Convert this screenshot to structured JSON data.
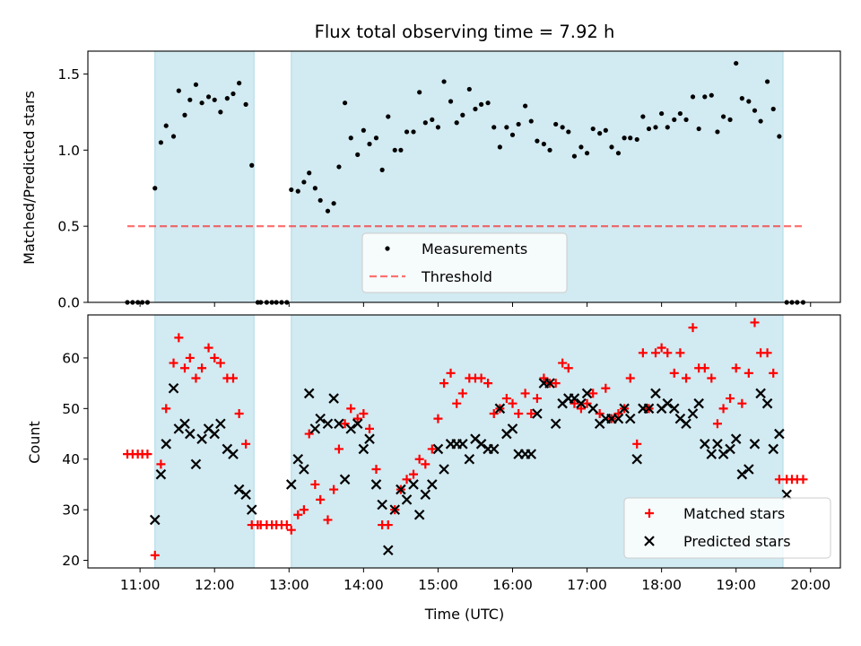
{
  "title": "Flux total observing time = 7.92 h",
  "colors": {
    "band": "#add8e6",
    "measurement": "#000000",
    "threshold": "#ff0000",
    "matched": "#ff0000",
    "predicted": "#000000"
  },
  "chart_data": [
    {
      "type": "scatter",
      "ylabel": "Matched/Predicted stars",
      "ylim": [
        0,
        1.65
      ],
      "yticks": [
        0.0,
        0.5,
        1.0,
        1.5
      ],
      "ytick_labels": [
        "0.0",
        "0.5",
        "1.0",
        "1.5"
      ],
      "xlim": [
        10.3,
        20.4
      ],
      "observing_bands": [
        [
          11.2,
          12.53
        ],
        [
          13.03,
          19.63
        ]
      ],
      "legend": {
        "placement": "lower center",
        "entries": [
          "Measurements",
          "Threshold"
        ]
      },
      "threshold": {
        "name": "Threshold",
        "y": 0.5,
        "x_range": [
          10.83,
          19.9
        ]
      },
      "series": [
        {
          "name": "Measurements",
          "x": [
            10.83,
            10.9,
            10.97,
            11.03,
            11.1,
            11.2,
            11.28,
            11.35,
            11.45,
            11.52,
            11.6,
            11.67,
            11.75,
            11.83,
            11.92,
            12.0,
            12.08,
            12.17,
            12.25,
            12.33,
            12.42,
            12.5,
            12.58,
            12.62,
            12.7,
            12.77,
            12.83,
            12.9,
            12.97,
            13.03,
            13.12,
            13.2,
            13.27,
            13.35,
            13.42,
            13.52,
            13.6,
            13.67,
            13.75,
            13.83,
            13.92,
            14.0,
            14.08,
            14.17,
            14.25,
            14.33,
            14.42,
            14.5,
            14.58,
            14.67,
            14.75,
            14.83,
            14.92,
            15.0,
            15.08,
            15.17,
            15.25,
            15.33,
            15.42,
            15.5,
            15.58,
            15.67,
            15.75,
            15.83,
            15.92,
            16.0,
            16.08,
            16.17,
            16.25,
            16.33,
            16.42,
            16.5,
            16.58,
            16.67,
            16.75,
            16.83,
            16.92,
            17.0,
            17.08,
            17.17,
            17.25,
            17.33,
            17.42,
            17.5,
            17.58,
            17.67,
            17.75,
            17.83,
            17.92,
            18.0,
            18.08,
            18.17,
            18.25,
            18.33,
            18.42,
            18.5,
            18.58,
            18.67,
            18.75,
            18.83,
            18.92,
            19.0,
            19.08,
            19.17,
            19.25,
            19.33,
            19.42,
            19.5,
            19.58,
            19.68,
            19.75,
            19.82,
            19.9
          ],
          "y": [
            0,
            0,
            0,
            0,
            0,
            0.75,
            1.05,
            1.16,
            1.09,
            1.39,
            1.23,
            1.33,
            1.43,
            1.31,
            1.35,
            1.33,
            1.25,
            1.34,
            1.37,
            1.44,
            1.3,
            0.9,
            0,
            0,
            0,
            0,
            0,
            0,
            0,
            0.74,
            0.73,
            0.79,
            0.85,
            0.75,
            0.67,
            0.6,
            0.65,
            0.89,
            1.31,
            1.08,
            0.97,
            1.13,
            1.04,
            1.08,
            0.87,
            1.22,
            1.0,
            1.0,
            1.12,
            1.12,
            1.38,
            1.18,
            1.2,
            1.15,
            1.45,
            1.32,
            1.18,
            1.23,
            1.4,
            1.27,
            1.3,
            1.31,
            1.15,
            1.02,
            1.15,
            1.1,
            1.17,
            1.29,
            1.19,
            1.06,
            1.04,
            1.0,
            1.17,
            1.15,
            1.12,
            0.96,
            1.02,
            0.98,
            1.14,
            1.11,
            1.13,
            1.02,
            0.98,
            1.08,
            1.08,
            1.07,
            1.22,
            1.14,
            1.15,
            1.24,
            1.15,
            1.2,
            1.24,
            1.2,
            1.35,
            1.14,
            1.35,
            1.36,
            1.12,
            1.22,
            1.2,
            1.57,
            1.34,
            1.32,
            1.26,
            1.19,
            1.45,
            1.27,
            1.09,
            0,
            0,
            0,
            0
          ]
        }
      ]
    },
    {
      "type": "scatter",
      "xlabel": "Time (UTC)",
      "ylabel": "Count",
      "ylim": [
        18.5,
        68.5
      ],
      "yticks": [
        20,
        30,
        40,
        50,
        60
      ],
      "ytick_labels": [
        "20",
        "30",
        "40",
        "50",
        "60"
      ],
      "xlim": [
        10.3,
        20.4
      ],
      "xticks": [
        11,
        12,
        13,
        14,
        15,
        16,
        17,
        18,
        19,
        20
      ],
      "xtick_labels": [
        "11:00",
        "12:00",
        "13:00",
        "14:00",
        "15:00",
        "16:00",
        "17:00",
        "18:00",
        "19:00",
        "20:00"
      ],
      "observing_bands": [
        [
          11.2,
          12.53
        ],
        [
          13.03,
          19.63
        ]
      ],
      "legend": {
        "placement": "lower right",
        "entries": [
          "Matched stars",
          "Predicted stars"
        ]
      },
      "series": [
        {
          "name": "Matched stars",
          "marker": "plus",
          "x": [
            10.83,
            10.9,
            10.97,
            11.03,
            11.1,
            11.2,
            11.28,
            11.35,
            11.45,
            11.52,
            11.6,
            11.67,
            11.75,
            11.83,
            11.92,
            12.0,
            12.08,
            12.17,
            12.25,
            12.33,
            12.42,
            12.5,
            12.58,
            12.62,
            12.7,
            12.77,
            12.83,
            12.9,
            12.97,
            13.03,
            13.12,
            13.2,
            13.27,
            13.35,
            13.42,
            13.52,
            13.6,
            13.67,
            13.75,
            13.83,
            13.92,
            14.0,
            14.08,
            14.17,
            14.25,
            14.33,
            14.42,
            14.5,
            14.58,
            14.67,
            14.75,
            14.83,
            14.92,
            15.0,
            15.08,
            15.17,
            15.25,
            15.33,
            15.42,
            15.5,
            15.58,
            15.67,
            15.75,
            15.83,
            15.92,
            16.0,
            16.08,
            16.17,
            16.25,
            16.33,
            16.42,
            16.5,
            16.58,
            16.67,
            16.75,
            16.83,
            16.92,
            17.0,
            17.08,
            17.17,
            17.25,
            17.33,
            17.42,
            17.5,
            17.58,
            17.67,
            17.75,
            17.83,
            17.92,
            18.0,
            18.08,
            18.17,
            18.25,
            18.33,
            18.42,
            18.5,
            18.58,
            18.67,
            18.75,
            18.83,
            18.92,
            19.0,
            19.08,
            19.17,
            19.25,
            19.33,
            19.42,
            19.5,
            19.58,
            19.68,
            19.75,
            19.82,
            19.9
          ],
          "y": [
            41,
            41,
            41,
            41,
            41,
            21,
            39,
            50,
            59,
            64,
            58,
            60,
            56,
            58,
            62,
            60,
            59,
            56,
            56,
            49,
            43,
            27,
            27,
            27,
            27,
            27,
            27,
            27,
            27,
            26,
            29,
            30,
            45,
            35,
            32,
            28,
            34,
            42,
            47,
            50,
            48,
            49,
            46,
            38,
            27,
            27,
            30,
            34,
            36,
            37,
            40,
            39,
            42,
            48,
            55,
            57,
            51,
            53,
            56,
            56,
            56,
            55,
            49,
            50,
            52,
            51,
            49,
            53,
            49,
            52,
            56,
            55,
            55,
            59,
            58,
            51,
            50,
            51,
            53,
            49,
            54,
            48,
            49,
            50,
            56,
            43,
            61,
            50,
            61,
            62,
            61,
            57,
            61,
            56,
            66,
            58,
            58,
            56,
            47,
            50,
            52,
            58,
            51,
            57,
            67,
            61,
            61,
            57,
            36,
            36,
            36,
            36,
            36
          ]
        },
        {
          "name": "Predicted stars",
          "marker": "x",
          "x": [
            11.2,
            11.28,
            11.35,
            11.45,
            11.52,
            11.6,
            11.67,
            11.75,
            11.83,
            11.92,
            12.0,
            12.08,
            12.17,
            12.25,
            12.33,
            12.42,
            12.5,
            13.03,
            13.12,
            13.2,
            13.27,
            13.35,
            13.42,
            13.52,
            13.6,
            13.67,
            13.75,
            13.83,
            13.92,
            14.0,
            14.08,
            14.17,
            14.25,
            14.33,
            14.42,
            14.5,
            14.58,
            14.67,
            14.75,
            14.83,
            14.92,
            15.0,
            15.08,
            15.17,
            15.25,
            15.33,
            15.42,
            15.5,
            15.58,
            15.67,
            15.75,
            15.83,
            15.92,
            16.0,
            16.08,
            16.17,
            16.25,
            16.33,
            16.42,
            16.5,
            16.58,
            16.67,
            16.75,
            16.83,
            16.92,
            17.0,
            17.08,
            17.17,
            17.25,
            17.33,
            17.42,
            17.5,
            17.58,
            17.67,
            17.75,
            17.83,
            17.92,
            18.0,
            18.08,
            18.17,
            18.25,
            18.33,
            18.42,
            18.5,
            18.58,
            18.67,
            18.75,
            18.83,
            18.92,
            19.0,
            19.08,
            19.17,
            19.25,
            19.33,
            19.42,
            19.5,
            19.58,
            19.68
          ],
          "y": [
            28,
            37,
            43,
            54,
            46,
            47,
            45,
            39,
            44,
            46,
            45,
            47,
            42,
            41,
            34,
            33,
            30,
            35,
            40,
            38,
            53,
            46,
            48,
            47,
            52,
            47,
            36,
            46,
            47,
            42,
            44,
            35,
            31,
            22,
            30,
            34,
            32,
            35,
            29,
            33,
            35,
            42,
            38,
            43,
            43,
            43,
            40,
            44,
            43,
            42,
            42,
            50,
            45,
            46,
            41,
            41,
            41,
            49,
            55,
            55,
            47,
            51,
            52,
            52,
            51,
            53,
            50,
            47,
            48,
            48,
            48,
            50,
            48,
            40,
            50,
            50,
            53,
            50,
            51,
            50,
            48,
            47,
            49,
            51,
            43,
            41,
            43,
            41,
            42,
            44,
            37,
            38,
            43,
            53,
            51,
            42,
            45,
            33
          ]
        }
      ]
    }
  ]
}
